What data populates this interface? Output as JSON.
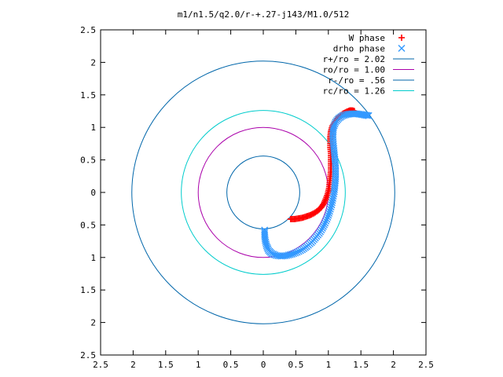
{
  "chart_data": {
    "type": "scatter",
    "title": "m1/n1.5/q2.0/r-+.27-j143/M1.0/512",
    "xlabel": "",
    "ylabel": "",
    "xlim": [
      -2.5,
      2.5
    ],
    "ylim": [
      -2.5,
      2.5
    ],
    "x_ticks": [
      -2.5,
      -2,
      -1.5,
      -1,
      -0.5,
      0,
      0.5,
      1,
      1.5,
      2,
      2.5
    ],
    "y_ticks": [
      -2.5,
      -2,
      -1.5,
      -1,
      -0.5,
      0,
      0.5,
      1,
      1.5,
      2,
      2.5
    ],
    "x_tick_labels": [
      "2.5",
      "2",
      "1.5",
      "1",
      "0.5",
      "0",
      "0.5",
      "1",
      "1.5",
      "2",
      "2.5"
    ],
    "y_tick_labels": [
      "2.5",
      "2",
      "1.5",
      "1",
      "0.5",
      "0",
      "0.5",
      "1",
      "1.5",
      "2",
      "2.5"
    ],
    "grid": false,
    "legend_position": "top-right",
    "series": [
      {
        "name": "W phase",
        "marker": "plus",
        "color": "#ff0000",
        "points": [
          [
            0.42,
            -0.41
          ],
          [
            0.48,
            -0.41
          ],
          [
            0.54,
            -0.4
          ],
          [
            0.6,
            -0.39
          ],
          [
            0.66,
            -0.37
          ],
          [
            0.72,
            -0.35
          ],
          [
            0.78,
            -0.32
          ],
          [
            0.84,
            -0.28
          ],
          [
            0.89,
            -0.23
          ],
          [
            0.93,
            -0.17
          ],
          [
            0.96,
            -0.1
          ],
          [
            0.99,
            -0.02
          ],
          [
            1.01,
            0.06
          ],
          [
            1.02,
            0.15
          ],
          [
            1.03,
            0.24
          ],
          [
            1.04,
            0.33
          ],
          [
            1.04,
            0.42
          ],
          [
            1.04,
            0.51
          ],
          [
            1.04,
            0.6
          ],
          [
            1.03,
            0.69
          ],
          [
            1.03,
            0.78
          ],
          [
            1.03,
            0.86
          ],
          [
            1.04,
            0.94
          ],
          [
            1.06,
            1.02
          ],
          [
            1.1,
            1.09
          ],
          [
            1.16,
            1.16
          ],
          [
            1.22,
            1.21
          ],
          [
            1.28,
            1.24
          ],
          [
            1.33,
            1.26
          ],
          [
            1.37,
            1.26
          ],
          [
            1.4,
            1.25
          ]
        ]
      },
      {
        "name": "drho phase",
        "marker": "cross",
        "color": "#3399ff",
        "points": [
          [
            0.02,
            -0.58
          ],
          [
            0.02,
            -0.66
          ],
          [
            0.03,
            -0.74
          ],
          [
            0.05,
            -0.82
          ],
          [
            0.08,
            -0.89
          ],
          [
            0.13,
            -0.94
          ],
          [
            0.2,
            -0.97
          ],
          [
            0.28,
            -0.98
          ],
          [
            0.36,
            -0.97
          ],
          [
            0.44,
            -0.95
          ],
          [
            0.52,
            -0.92
          ],
          [
            0.6,
            -0.88
          ],
          [
            0.67,
            -0.83
          ],
          [
            0.74,
            -0.77
          ],
          [
            0.8,
            -0.7
          ],
          [
            0.86,
            -0.63
          ],
          [
            0.91,
            -0.55
          ],
          [
            0.95,
            -0.47
          ],
          [
            0.99,
            -0.38
          ],
          [
            1.02,
            -0.29
          ],
          [
            1.05,
            -0.19
          ],
          [
            1.07,
            -0.09
          ],
          [
            1.09,
            0.01
          ],
          [
            1.1,
            0.11
          ],
          [
            1.11,
            0.21
          ],
          [
            1.11,
            0.31
          ],
          [
            1.11,
            0.41
          ],
          [
            1.1,
            0.51
          ],
          [
            1.09,
            0.61
          ],
          [
            1.08,
            0.71
          ],
          [
            1.07,
            0.81
          ],
          [
            1.07,
            0.91
          ],
          [
            1.08,
            1.0
          ],
          [
            1.11,
            1.08
          ],
          [
            1.16,
            1.14
          ],
          [
            1.22,
            1.18
          ],
          [
            1.29,
            1.2
          ],
          [
            1.36,
            1.21
          ],
          [
            1.43,
            1.21
          ],
          [
            1.5,
            1.2
          ],
          [
            1.56,
            1.19
          ],
          [
            1.62,
            1.18
          ]
        ]
      },
      {
        "name": "r+/ro = 2.02",
        "type": "circle",
        "radius": 2.02,
        "color": "#0066aa"
      },
      {
        "name": "ro/ro = 1.00",
        "type": "circle",
        "radius": 1.0,
        "color": "#aa00aa"
      },
      {
        "name": "r-/ro = .56",
        "type": "circle",
        "radius": 0.56,
        "color": "#0066aa"
      },
      {
        "name": "rc/ro = 1.26",
        "type": "circle",
        "radius": 1.26,
        "color": "#00cccc"
      }
    ]
  }
}
